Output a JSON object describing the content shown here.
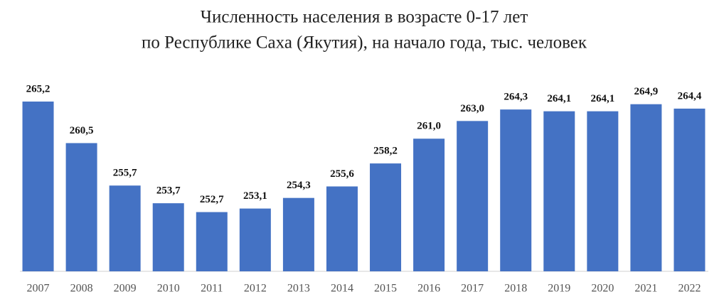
{
  "chart_data": {
    "type": "bar",
    "title": [
      "Численность населения в возрасте 0-17 лет",
      "по Республике Саха (Якутия), на начало года, тыс. человек"
    ],
    "categories": [
      "2007",
      "2008",
      "2009",
      "2010",
      "2011",
      "2012",
      "2013",
      "2014",
      "2015",
      "2016",
      "2017",
      "2018",
      "2019",
      "2020",
      "2021",
      "2022"
    ],
    "values": [
      265.2,
      260.5,
      255.7,
      253.7,
      252.7,
      253.1,
      254.3,
      255.6,
      258.2,
      261.0,
      263.0,
      264.3,
      264.1,
      264.1,
      264.9,
      264.4
    ],
    "value_labels": [
      "265,2",
      "260,5",
      "255,7",
      "253,7",
      "252,7",
      "253,1",
      "254,3",
      "255,6",
      "258,2",
      "261,0",
      "263,0",
      "264,3",
      "264,1",
      "264,1",
      "264,9",
      "264,4"
    ],
    "color": "#4472c4",
    "ylim": [
      246,
      266
    ]
  }
}
